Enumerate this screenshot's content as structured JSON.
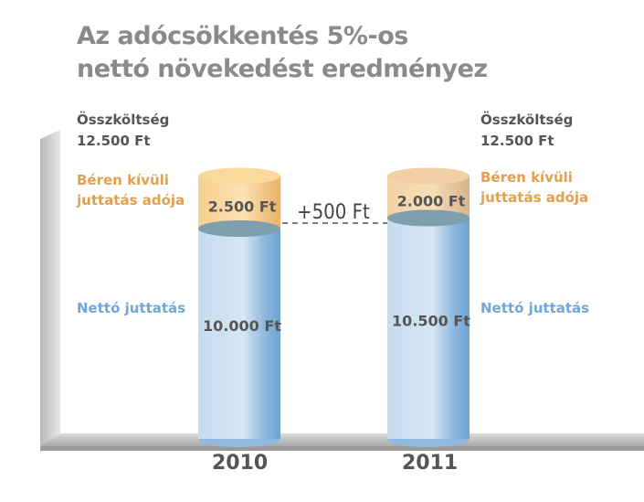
{
  "title": {
    "line1": "Az adócsökkentés 5%-os",
    "line2": "nettó növekedést eredményez"
  },
  "chart_data": {
    "type": "bar",
    "stacked": true,
    "categories": [
      "2010",
      "2011"
    ],
    "series": [
      {
        "name": "Nettó juttatás",
        "values": [
          10000,
          10500
        ],
        "color": "#9ec3e3",
        "labels": [
          "10.000 Ft",
          "10.500 Ft"
        ]
      },
      {
        "name": "Béren kívüli juttatás adója",
        "values": [
          2500,
          2000
        ],
        "color": "#f5c98a",
        "labels": [
          "2.500 Ft",
          "2.000 Ft"
        ]
      }
    ],
    "totals": [
      12500,
      12500
    ],
    "difference_label": "+500 Ft",
    "unit": "Ft"
  },
  "left_labels": {
    "total_title": "Összköltség",
    "total_value": "12.500 Ft",
    "tax_line1": "Béren kívüli",
    "tax_line2": "juttatás adója",
    "net": "Nettó juttatás"
  },
  "right_labels": {
    "total_title": "Összköltség",
    "total_value": "12.500 Ft",
    "tax_line1": "Béren kívüli",
    "tax_line2": "juttatás adója",
    "net": "Nettó juttatás"
  }
}
